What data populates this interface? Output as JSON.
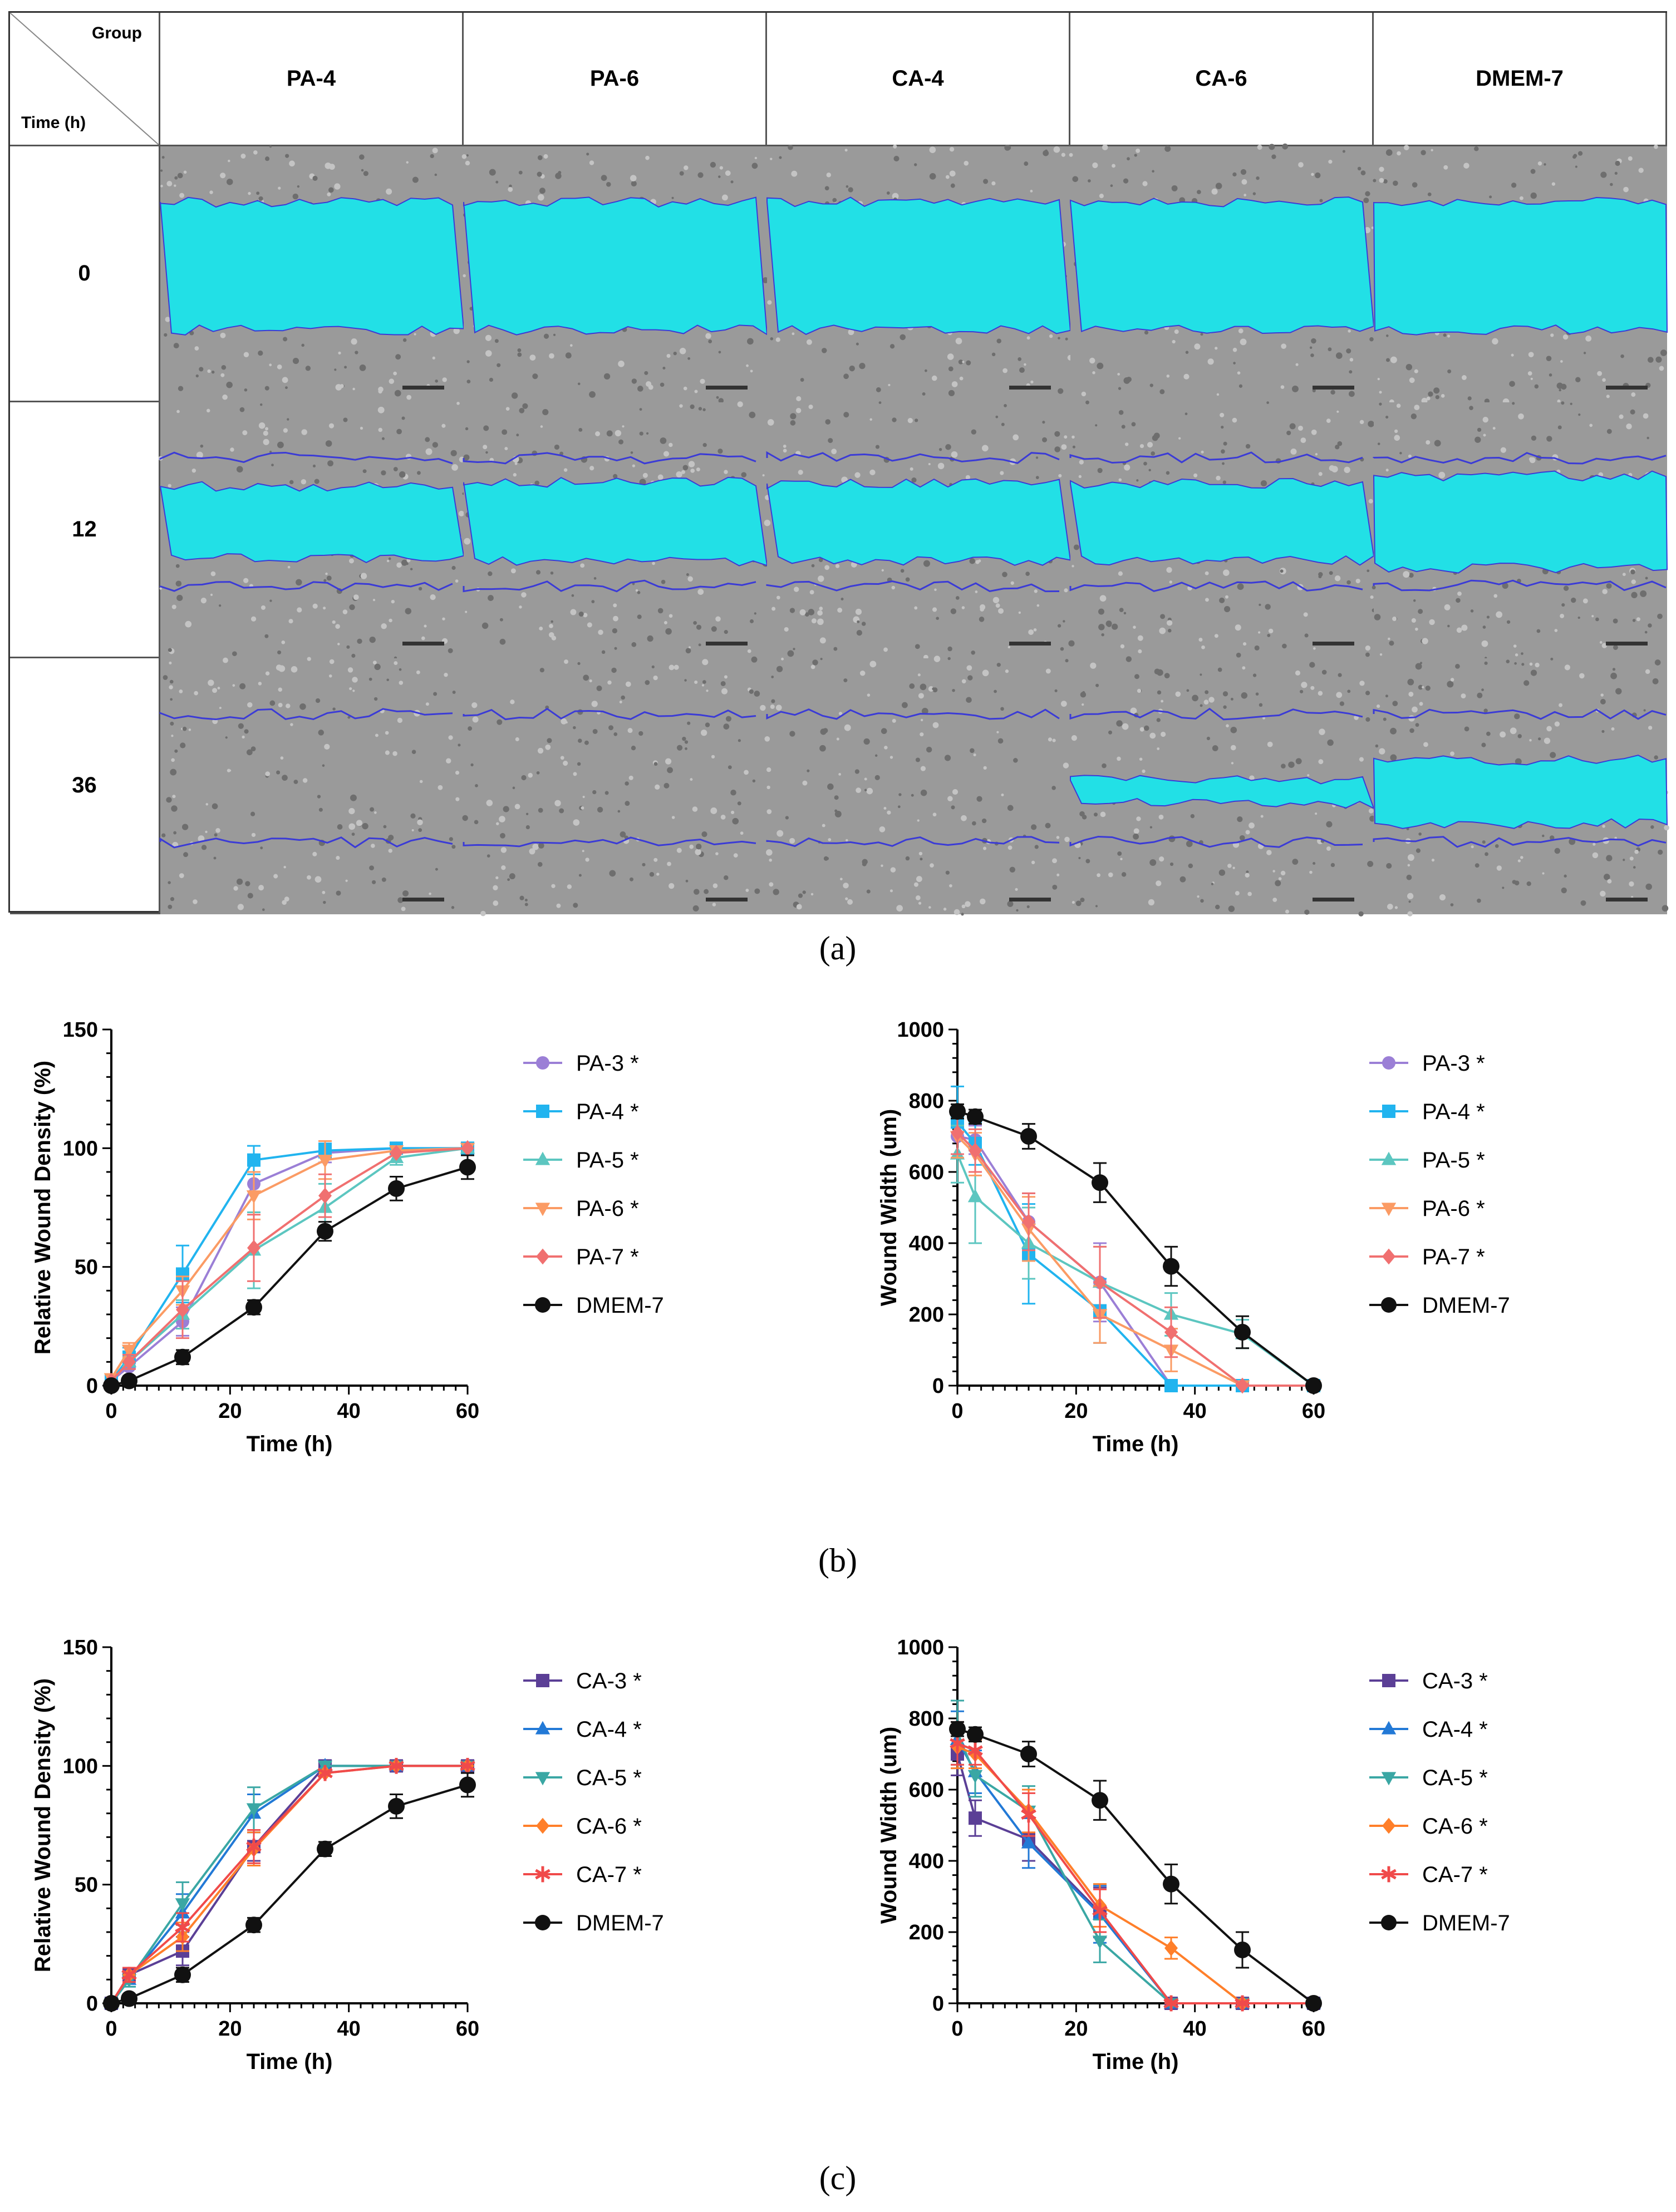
{
  "panel_a": {
    "corner_top": "Group",
    "corner_bottom": "Time (h)",
    "groups": [
      "PA-4",
      "PA-6",
      "CA-4",
      "CA-6",
      "DMEM-7"
    ],
    "times": [
      "0",
      "12",
      "36"
    ],
    "wound_fill": [
      [
        1.0,
        1.0,
        1.0,
        1.0,
        1.0
      ],
      [
        0.56,
        0.62,
        0.6,
        0.6,
        0.72
      ],
      [
        0.0,
        0.0,
        0.0,
        0.18,
        0.5
      ]
    ],
    "colors": {
      "wound": "#22e0e6",
      "edge": "#3b3bd6",
      "tissue": "#9a9a9a"
    }
  },
  "labels": {
    "a": "(a)",
    "b": "(b)",
    "c": "(c)"
  },
  "chart_data": [
    {
      "type": "line",
      "ylabel": "Relative  Wound  Density  (%)",
      "xlabel": "Time (h)",
      "xlim": [
        0,
        60
      ],
      "ylim": [
        0,
        150
      ],
      "xticks": [
        0,
        20,
        40,
        60
      ],
      "yticks": [
        0,
        50,
        100,
        150
      ],
      "x": [
        0,
        3,
        12,
        24,
        36,
        48,
        60
      ],
      "series": [
        {
          "name": "PA-3 *",
          "color": "#9b7fd6",
          "marker": "circle",
          "values": [
            2,
            8,
            27,
            85,
            98,
            100,
            100
          ],
          "err": [
            2,
            4,
            6,
            12,
            4,
            1,
            1
          ]
        },
        {
          "name": "PA-4 *",
          "color": "#21b4ef",
          "marker": "square",
          "values": [
            2,
            12,
            47,
            95,
            99,
            100,
            100
          ],
          "err": [
            2,
            4,
            12,
            6,
            3,
            1,
            1
          ]
        },
        {
          "name": "PA-5 *",
          "color": "#5cc6c0",
          "marker": "triangle-up",
          "values": [
            2,
            10,
            30,
            57,
            75,
            96,
            100
          ],
          "err": [
            2,
            3,
            6,
            16,
            10,
            3,
            1
          ]
        },
        {
          "name": "PA-6 *",
          "color": "#fb9b64",
          "marker": "triangle-down",
          "values": [
            3,
            15,
            40,
            80,
            95,
            99,
            100
          ],
          "err": [
            2,
            3,
            6,
            10,
            8,
            2,
            1
          ]
        },
        {
          "name": "PA-7 *",
          "color": "#f07070",
          "marker": "diamond",
          "values": [
            2,
            10,
            32,
            58,
            80,
            98,
            100
          ],
          "err": [
            2,
            3,
            12,
            14,
            9,
            2,
            1
          ]
        },
        {
          "name": "DMEM-7",
          "color": "#111111",
          "marker": "circle",
          "values": [
            0,
            2,
            12,
            33,
            65,
            83,
            92
          ],
          "err": [
            0,
            1,
            3,
            3,
            4,
            5,
            5
          ]
        }
      ]
    },
    {
      "type": "line",
      "ylabel": "Wound  Width (um)",
      "xlabel": "Time (h)",
      "xlim": [
        0,
        60
      ],
      "ylim": [
        0,
        1000
      ],
      "xticks": [
        0,
        20,
        40,
        60
      ],
      "yticks": [
        0,
        200,
        400,
        600,
        800,
        1000
      ],
      "x": [
        0,
        3,
        12,
        24,
        36,
        48,
        60
      ],
      "series": [
        {
          "name": "PA-3 *",
          "color": "#9b7fd6",
          "marker": "circle",
          "values": [
            700,
            690,
            460,
            290,
            0,
            0,
            0
          ],
          "err": [
            60,
            40,
            80,
            110,
            10,
            5,
            5
          ]
        },
        {
          "name": "PA-4 *",
          "color": "#21b4ef",
          "marker": "square",
          "values": [
            740,
            680,
            370,
            210,
            0,
            0,
            0
          ],
          "err": [
            100,
            60,
            140,
            90,
            10,
            5,
            5
          ]
        },
        {
          "name": "PA-5 *",
          "color": "#5cc6c0",
          "marker": "triangle-up",
          "values": [
            650,
            530,
            400,
            290,
            200,
            145,
            0
          ],
          "err": [
            80,
            130,
            100,
            100,
            60,
            40,
            5
          ]
        },
        {
          "name": "PA-6 *",
          "color": "#fb9b64",
          "marker": "triangle-down",
          "values": [
            700,
            650,
            440,
            200,
            100,
            0,
            0
          ],
          "err": [
            60,
            60,
            90,
            80,
            60,
            5,
            5
          ]
        },
        {
          "name": "PA-7 *",
          "color": "#f07070",
          "marker": "diamond",
          "values": [
            710,
            660,
            460,
            290,
            150,
            0,
            0
          ],
          "err": [
            60,
            60,
            80,
            100,
            70,
            5,
            5
          ]
        },
        {
          "name": "DMEM-7",
          "color": "#111111",
          "marker": "circle",
          "values": [
            770,
            755,
            700,
            570,
            335,
            150,
            0
          ],
          "err": [
            20,
            20,
            35,
            55,
            55,
            45,
            5
          ]
        }
      ]
    },
    {
      "type": "line",
      "ylabel": "Relative  Wound  Density  (%)",
      "xlabel": "Time (h)",
      "xlim": [
        0,
        60
      ],
      "ylim": [
        0,
        150
      ],
      "xticks": [
        0,
        20,
        40,
        60
      ],
      "yticks": [
        0,
        50,
        100,
        150
      ],
      "x": [
        0,
        3,
        12,
        24,
        36,
        48,
        60
      ],
      "series": [
        {
          "name": "CA-3 *",
          "color": "#5b3f96",
          "marker": "square",
          "values": [
            0,
            12,
            22,
            66,
            100,
            100,
            100
          ],
          "err": [
            1,
            3,
            6,
            6,
            2,
            1,
            1
          ]
        },
        {
          "name": "CA-4 *",
          "color": "#2279d6",
          "marker": "triangle-up",
          "values": [
            0,
            10,
            38,
            80,
            100,
            100,
            100
          ],
          "err": [
            1,
            3,
            8,
            8,
            2,
            1,
            1
          ]
        },
        {
          "name": "CA-5 *",
          "color": "#3aa7a4",
          "marker": "triangle-down",
          "values": [
            0,
            10,
            42,
            82,
            100,
            100,
            100
          ],
          "err": [
            1,
            3,
            9,
            9,
            2,
            1,
            1
          ]
        },
        {
          "name": "CA-6 *",
          "color": "#ff7f2a",
          "marker": "diamond",
          "values": [
            0,
            12,
            28,
            65,
            97,
            100,
            100
          ],
          "err": [
            1,
            3,
            6,
            7,
            2,
            1,
            1
          ]
        },
        {
          "name": "CA-7 *",
          "color": "#f04a4a",
          "marker": "asterisk",
          "values": [
            0,
            12,
            32,
            66,
            97,
            100,
            100
          ],
          "err": [
            1,
            3,
            6,
            7,
            2,
            1,
            1
          ]
        },
        {
          "name": "DMEM-7",
          "color": "#111111",
          "marker": "circle",
          "values": [
            0,
            2,
            12,
            33,
            65,
            83,
            92
          ],
          "err": [
            0,
            1,
            3,
            3,
            3,
            5,
            5
          ]
        }
      ]
    },
    {
      "type": "line",
      "ylabel": "Wound  Width (um)",
      "xlabel": "Time (h)",
      "xlim": [
        0,
        60
      ],
      "ylim": [
        0,
        1000
      ],
      "xticks": [
        0,
        20,
        40,
        60
      ],
      "yticks": [
        0,
        200,
        400,
        600,
        800,
        1000
      ],
      "x": [
        0,
        3,
        12,
        24,
        36,
        48,
        60
      ],
      "series": [
        {
          "name": "CA-3 *",
          "color": "#5b3f96",
          "marker": "square",
          "values": [
            700,
            520,
            460,
            255,
            0,
            0,
            0
          ],
          "err": [
            60,
            50,
            60,
            70,
            5,
            5,
            5
          ]
        },
        {
          "name": "CA-4 *",
          "color": "#2279d6",
          "marker": "triangle-up",
          "values": [
            740,
            650,
            450,
            250,
            0,
            0,
            0
          ],
          "err": [
            80,
            60,
            70,
            80,
            5,
            5,
            5
          ]
        },
        {
          "name": "CA-5 *",
          "color": "#3aa7a4",
          "marker": "triangle-down",
          "values": [
            760,
            640,
            540,
            175,
            0,
            0,
            0
          ],
          "err": [
            90,
            60,
            70,
            60,
            5,
            5,
            5
          ]
        },
        {
          "name": "CA-6 *",
          "color": "#ff7f2a",
          "marker": "diamond",
          "values": [
            720,
            700,
            540,
            275,
            155,
            0,
            0
          ],
          "err": [
            60,
            40,
            60,
            60,
            30,
            5,
            5
          ]
        },
        {
          "name": "CA-7 *",
          "color": "#f04a4a",
          "marker": "asterisk",
          "values": [
            730,
            710,
            530,
            260,
            0,
            0,
            0
          ],
          "err": [
            60,
            40,
            60,
            60,
            5,
            5,
            5
          ]
        },
        {
          "name": "DMEM-7",
          "color": "#111111",
          "marker": "circle",
          "values": [
            770,
            755,
            700,
            570,
            335,
            150,
            0
          ],
          "err": [
            20,
            20,
            35,
            55,
            55,
            50,
            5
          ]
        }
      ]
    }
  ]
}
